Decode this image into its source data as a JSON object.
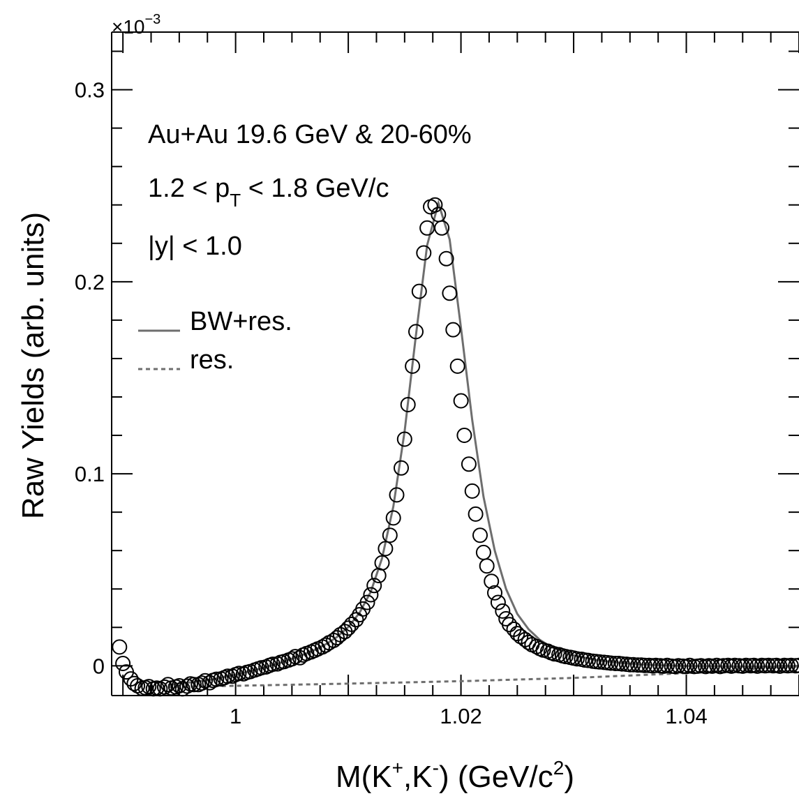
{
  "chart_data": {
    "type": "scatter",
    "xlabel_parts": {
      "base": "M(K",
      "sup1": "+",
      "mid": ",K",
      "sup2": "-",
      "mid2": ") (GeV/c",
      "sup3": "2",
      "end": ")"
    },
    "ylabel": "Raw Yields (arb. units)",
    "y_multiplier": {
      "base": "×10",
      "exponent": "−3"
    },
    "xlim": [
      0.989,
      1.05
    ],
    "ylim": [
      -0.0155,
      0.33
    ],
    "x_ticks": [
      {
        "value": 1.0,
        "label": "1"
      },
      {
        "value": 1.02,
        "label": "1.02"
      },
      {
        "value": 1.04,
        "label": "1.04"
      }
    ],
    "y_ticks": [
      {
        "value": 0.0,
        "label": "0"
      },
      {
        "value": 0.1,
        "label": "0.1"
      },
      {
        "value": 0.2,
        "label": "0.2"
      },
      {
        "value": 0.3,
        "label": "0.3"
      }
    ],
    "annotations": {
      "system": "Au+Au 19.6 GeV & 20-60%",
      "pt_pre": "1.2 < p",
      "pt_sub": "T",
      "pt_post": " < 1.8 GeV/c",
      "rapidity": "|y| < 1.0"
    },
    "legend": {
      "placement": "upper-left",
      "items": [
        {
          "name": "BW+res.",
          "style": "solid",
          "color": "#6e6e6e"
        },
        {
          "name": "res.",
          "style": "dashed",
          "color": "#6e6e6e"
        }
      ]
    },
    "series": [
      {
        "name": "data",
        "marker": "open-circle",
        "color": "#000000",
        "points": [
          [
            0.9897,
            0.0098
          ],
          [
            0.99,
            0.0012
          ],
          [
            0.9903,
            -0.0032
          ],
          [
            0.9907,
            -0.0068
          ],
          [
            0.991,
            -0.0092
          ],
          [
            0.9913,
            -0.0104
          ],
          [
            0.9917,
            -0.0118
          ],
          [
            0.992,
            -0.0114
          ],
          [
            0.9923,
            -0.0108
          ],
          [
            0.9927,
            -0.012
          ],
          [
            0.993,
            -0.0116
          ],
          [
            0.9933,
            -0.012
          ],
          [
            0.9937,
            -0.0111
          ],
          [
            0.994,
            -0.0098
          ],
          [
            0.9943,
            -0.0116
          ],
          [
            0.9947,
            -0.011
          ],
          [
            0.995,
            -0.0104
          ],
          [
            0.9953,
            -0.012
          ],
          [
            0.9957,
            -0.0106
          ],
          [
            0.996,
            -0.0094
          ],
          [
            0.9963,
            -0.0098
          ],
          [
            0.9967,
            -0.0098
          ],
          [
            0.997,
            -0.009
          ],
          [
            0.9973,
            -0.0078
          ],
          [
            0.9977,
            -0.0088
          ],
          [
            0.998,
            -0.0076
          ],
          [
            0.9983,
            -0.007
          ],
          [
            0.9987,
            -0.0068
          ],
          [
            0.999,
            -0.0062
          ],
          [
            0.9993,
            -0.0054
          ],
          [
            0.9997,
            -0.0054
          ],
          [
            1.0,
            -0.0046
          ],
          [
            1.0003,
            -0.004
          ],
          [
            1.0007,
            -0.0042
          ],
          [
            1.001,
            -0.0034
          ],
          [
            1.0013,
            -0.003
          ],
          [
            1.0017,
            -0.0022
          ],
          [
            1.002,
            -0.0016
          ],
          [
            1.0023,
            -0.001
          ],
          [
            1.0027,
            -0.0006
          ],
          [
            1.003,
            0.0002
          ],
          [
            1.0033,
            0.0008
          ],
          [
            1.0037,
            0.001
          ],
          [
            1.004,
            0.0018
          ],
          [
            1.0043,
            0.0022
          ],
          [
            1.0047,
            0.003
          ],
          [
            1.005,
            0.0036
          ],
          [
            1.0053,
            0.0048
          ],
          [
            1.0057,
            0.0042
          ],
          [
            1.006,
            0.0056
          ],
          [
            1.0063,
            0.0064
          ],
          [
            1.0067,
            0.0072
          ],
          [
            1.007,
            0.008
          ],
          [
            1.0073,
            0.0088
          ],
          [
            1.0077,
            0.0098
          ],
          [
            1.008,
            0.0108
          ],
          [
            1.0083,
            0.012
          ],
          [
            1.0087,
            0.0132
          ],
          [
            1.009,
            0.0146
          ],
          [
            1.0093,
            0.0162
          ],
          [
            1.0097,
            0.0178
          ],
          [
            1.01,
            0.0196
          ],
          [
            1.0103,
            0.0216
          ],
          [
            1.0107,
            0.024
          ],
          [
            1.011,
            0.0266
          ],
          [
            1.0113,
            0.0296
          ],
          [
            1.0117,
            0.033
          ],
          [
            1.012,
            0.037
          ],
          [
            1.0123,
            0.0418
          ],
          [
            1.0127,
            0.047
          ],
          [
            1.013,
            0.0536
          ],
          [
            1.0133,
            0.061
          ],
          [
            1.0137,
            0.068
          ],
          [
            1.014,
            0.077
          ],
          [
            1.0143,
            0.089
          ],
          [
            1.0147,
            0.103
          ],
          [
            1.015,
            0.118
          ],
          [
            1.0153,
            0.136
          ],
          [
            1.0157,
            0.156
          ],
          [
            1.016,
            0.174
          ],
          [
            1.0163,
            0.195
          ],
          [
            1.0167,
            0.215
          ],
          [
            1.017,
            0.228
          ],
          [
            1.0173,
            0.239
          ],
          [
            1.0177,
            0.24
          ],
          [
            1.018,
            0.235
          ],
          [
            1.0183,
            0.228
          ],
          [
            1.0187,
            0.212
          ],
          [
            1.019,
            0.194
          ],
          [
            1.0193,
            0.175
          ],
          [
            1.0197,
            0.156
          ],
          [
            1.02,
            0.138
          ],
          [
            1.0203,
            0.12
          ],
          [
            1.0207,
            0.105
          ],
          [
            1.021,
            0.091
          ],
          [
            1.0213,
            0.079
          ],
          [
            1.0217,
            0.068
          ],
          [
            1.022,
            0.059
          ],
          [
            1.0223,
            0.052
          ],
          [
            1.0227,
            0.044
          ],
          [
            1.023,
            0.038
          ],
          [
            1.0233,
            0.033
          ],
          [
            1.0237,
            0.0285
          ],
          [
            1.024,
            0.0245
          ],
          [
            1.0243,
            0.0215
          ],
          [
            1.0247,
            0.019
          ],
          [
            1.025,
            0.0168
          ],
          [
            1.0253,
            0.0152
          ],
          [
            1.0257,
            0.0136
          ],
          [
            1.026,
            0.0122
          ],
          [
            1.0263,
            0.011
          ],
          [
            1.0267,
            0.01
          ],
          [
            1.027,
            0.009
          ],
          [
            1.0273,
            0.0082
          ],
          [
            1.0277,
            0.0076
          ],
          [
            1.028,
            0.0068
          ],
          [
            1.0283,
            0.0062
          ],
          [
            1.0287,
            0.0058
          ],
          [
            1.029,
            0.0052
          ],
          [
            1.0293,
            0.0048
          ],
          [
            1.0297,
            0.0044
          ],
          [
            1.03,
            0.004
          ],
          [
            1.0303,
            0.0036
          ],
          [
            1.0307,
            0.0034
          ],
          [
            1.031,
            0.003
          ],
          [
            1.0313,
            0.0028
          ],
          [
            1.0317,
            0.0024
          ],
          [
            1.032,
            0.0022
          ],
          [
            1.0323,
            0.002
          ],
          [
            1.0327,
            0.0018
          ],
          [
            1.033,
            0.0016
          ],
          [
            1.0333,
            0.0014
          ],
          [
            1.0337,
            0.0012
          ],
          [
            1.034,
            0.0012
          ],
          [
            1.0343,
            0.001
          ],
          [
            1.0347,
            0.0008
          ],
          [
            1.035,
            0.0006
          ],
          [
            1.0353,
            0.0006
          ],
          [
            1.0357,
            0.0004
          ],
          [
            1.036,
            0.0004
          ],
          [
            1.0363,
            0.0002
          ],
          [
            1.0367,
            0.0002
          ],
          [
            1.037,
            0.0
          ],
          [
            1.0373,
            0.0002
          ],
          [
            1.0377,
            0.0
          ],
          [
            1.038,
            -0.0002
          ],
          [
            1.0383,
            0.0002
          ],
          [
            1.0387,
            -0.0002
          ],
          [
            1.039,
            -0.0004
          ],
          [
            1.0393,
            0.0
          ],
          [
            1.0397,
            -0.0002
          ],
          [
            1.04,
            -0.0004
          ],
          [
            1.0403,
            0.0002
          ],
          [
            1.0407,
            -0.0004
          ],
          [
            1.041,
            -0.0002
          ],
          [
            1.0413,
            0.0
          ],
          [
            1.0417,
            -0.0004
          ],
          [
            1.042,
            0.0
          ],
          [
            1.0423,
            -0.0002
          ],
          [
            1.0427,
            0.0002
          ],
          [
            1.043,
            -0.0004
          ],
          [
            1.0433,
            0.0
          ],
          [
            1.0437,
            0.0002
          ],
          [
            1.044,
            -0.0002
          ],
          [
            1.0443,
            0.0002
          ],
          [
            1.0447,
            0.0
          ],
          [
            1.045,
            -0.0002
          ],
          [
            1.0453,
            0.0002
          ],
          [
            1.0457,
            0.0
          ],
          [
            1.046,
            0.0002
          ],
          [
            1.0463,
            -0.0002
          ],
          [
            1.0467,
            0.0002
          ],
          [
            1.047,
            0.0
          ],
          [
            1.0473,
            0.0002
          ],
          [
            1.0477,
            0.0
          ],
          [
            1.048,
            0.0002
          ],
          [
            1.0483,
            -0.0002
          ],
          [
            1.0487,
            0.0002
          ],
          [
            1.049,
            0.0
          ],
          [
            1.0493,
            0.0002
          ],
          [
            1.0497,
            0.0
          ],
          [
            1.05,
            0.0002
          ]
        ]
      },
      {
        "name": "BW+res.",
        "style": "solid",
        "color": "#6e6e6e",
        "points": [
          [
            0.994,
            -0.01
          ],
          [
            0.996,
            -0.0086
          ],
          [
            0.998,
            -0.007
          ],
          [
            1.0,
            -0.0046
          ],
          [
            1.002,
            -0.0018
          ],
          [
            1.004,
            0.0016
          ],
          [
            1.006,
            0.0058
          ],
          [
            1.007,
            0.0082
          ],
          [
            1.008,
            0.0112
          ],
          [
            1.009,
            0.015
          ],
          [
            1.01,
            0.0202
          ],
          [
            1.011,
            0.0276
          ],
          [
            1.012,
            0.0386
          ],
          [
            1.013,
            0.056
          ],
          [
            1.014,
            0.083
          ],
          [
            1.015,
            0.122
          ],
          [
            1.016,
            0.172
          ],
          [
            1.017,
            0.219
          ],
          [
            1.018,
            0.241
          ],
          [
            1.019,
            0.222
          ],
          [
            1.02,
            0.176
          ],
          [
            1.021,
            0.128
          ],
          [
            1.022,
            0.088
          ],
          [
            1.023,
            0.06
          ],
          [
            1.024,
            0.04
          ],
          [
            1.025,
            0.027
          ],
          [
            1.026,
            0.019
          ],
          [
            1.027,
            0.0135
          ],
          [
            1.028,
            0.0098
          ],
          [
            1.03,
            0.0055
          ],
          [
            1.032,
            0.003
          ],
          [
            1.034,
            0.0016
          ],
          [
            1.036,
            0.0007
          ],
          [
            1.038,
            0.0002
          ],
          [
            1.04,
            -0.0001
          ],
          [
            1.045,
            -0.0003
          ],
          [
            1.05,
            -0.0004
          ]
        ]
      },
      {
        "name": "res.",
        "style": "dashed",
        "color": "#6e6e6e",
        "points": [
          [
            0.994,
            -0.011
          ],
          [
            1.0,
            -0.0104
          ],
          [
            1.01,
            -0.0093
          ],
          [
            1.02,
            -0.008
          ],
          [
            1.03,
            -0.0063
          ],
          [
            1.04,
            -0.0038
          ],
          [
            1.045,
            -0.002
          ],
          [
            1.05,
            0.0
          ]
        ]
      }
    ]
  }
}
